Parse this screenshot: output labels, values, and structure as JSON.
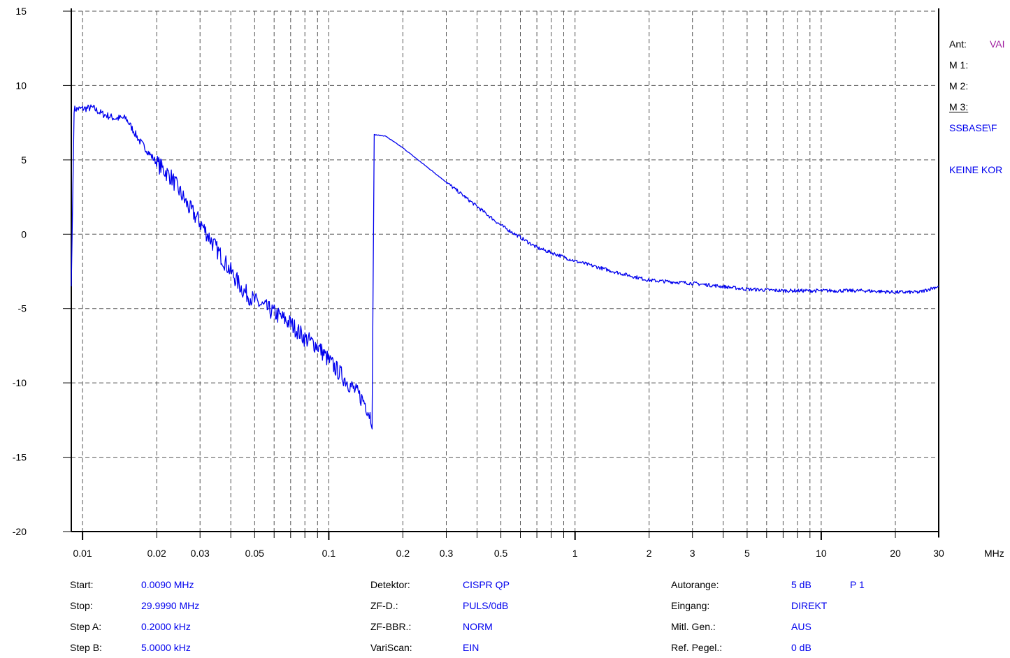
{
  "chart_data": {
    "type": "line",
    "x_scale": "log",
    "xlim": [
      0.009,
      30
    ],
    "ylim": [
      -20,
      15
    ],
    "grid": true,
    "x_unit": "MHz",
    "y_ticks": [
      "15",
      "10",
      "5",
      "0",
      "-5",
      "-10",
      "-15",
      "-20"
    ],
    "y_tick_values": [
      15,
      10,
      5,
      0,
      -5,
      -10,
      -15,
      -20
    ],
    "x_tick_labels": [
      "0.01",
      "0.02",
      "0.03",
      "0.05",
      "0.1",
      "0.2",
      "0.3",
      "0.5",
      "1",
      "2",
      "3",
      "5",
      "10",
      "20",
      "30"
    ],
    "x_tick_values": [
      0.01,
      0.02,
      0.03,
      0.05,
      0.1,
      0.2,
      0.3,
      0.5,
      1,
      2,
      3,
      5,
      10,
      20,
      30
    ],
    "series": [
      {
        "color": "#0000ee",
        "noise": [
          0.25,
          0.6,
          0.12
        ],
        "segments": [
          {
            "x": [
              0.009,
              0.0092,
              0.011,
              0.012,
              0.0135,
              0.015,
              0.017,
              0.02,
              0.023,
              0.027,
              0.03,
              0.035,
              0.04,
              0.045,
              0.05,
              0.06,
              0.07,
              0.08,
              0.09,
              0.1,
              0.12,
              0.14,
              0.15
            ],
            "y": [
              -3.5,
              8.4,
              8.5,
              8.1,
              7.8,
              7.8,
              6.3,
              4.8,
              3.8,
              1.8,
              0.8,
              -1.0,
              -2.5,
              -3.8,
              -4.5,
              -5.3,
              -6.0,
              -7.0,
              -7.5,
              -8.5,
              -10.0,
              -11.3,
              -12.5
            ]
          },
          {
            "x": [
              0.15,
              0.152,
              0.17,
              0.2,
              0.3,
              0.5,
              0.7,
              1,
              1.5,
              2,
              3,
              5,
              7,
              10,
              15,
              20,
              25,
              30
            ],
            "y": [
              -12.3,
              6.7,
              6.6,
              5.8,
              3.5,
              0.6,
              -0.9,
              -1.8,
              -2.6,
              -3.1,
              -3.3,
              -3.7,
              -3.8,
              -3.8,
              -3.8,
              -3.9,
              -3.9,
              -3.5
            ]
          }
        ]
      }
    ]
  },
  "axis_unit_label": "MHz",
  "info": {
    "col1": [
      {
        "label": "Start:",
        "value": "0.0090 MHz"
      },
      {
        "label": "Stop:",
        "value": "29.9990 MHz"
      },
      {
        "label": "Step A:",
        "value": "0.2000 kHz"
      },
      {
        "label": "Step B:",
        "value": "5.0000 kHz"
      }
    ],
    "col2": [
      {
        "label": "Detektor:",
        "value": "CISPR QP"
      },
      {
        "label": "ZF-D.:",
        "value": "PULS/0dB"
      },
      {
        "label": "ZF-BBR.:",
        "value": "NORM"
      },
      {
        "label": "VariScan:",
        "value": "EIN"
      }
    ],
    "col3": [
      {
        "label": "Autorange:",
        "value": "5 dB",
        "extra": "P 1"
      },
      {
        "label": "Eingang:",
        "value": "DIREKT",
        "extra": ""
      },
      {
        "label": "Mitl. Gen.:",
        "value": "AUS",
        "extra": ""
      },
      {
        "label": "Ref. Pegel.:",
        "value": "0  dB",
        "extra": ""
      }
    ]
  },
  "legend": {
    "ant_label": "Ant:",
    "ant_value": "VAI",
    "m1": "M 1:",
    "m2": "M 2:",
    "m3": "M 3:",
    "file": "SSBASE\\F",
    "korr": "KEINE KOR"
  },
  "colors": {
    "trace": "#0000ee",
    "info_value": "#0000ee",
    "ant_value": "#a020a0",
    "grid": "#555555"
  }
}
